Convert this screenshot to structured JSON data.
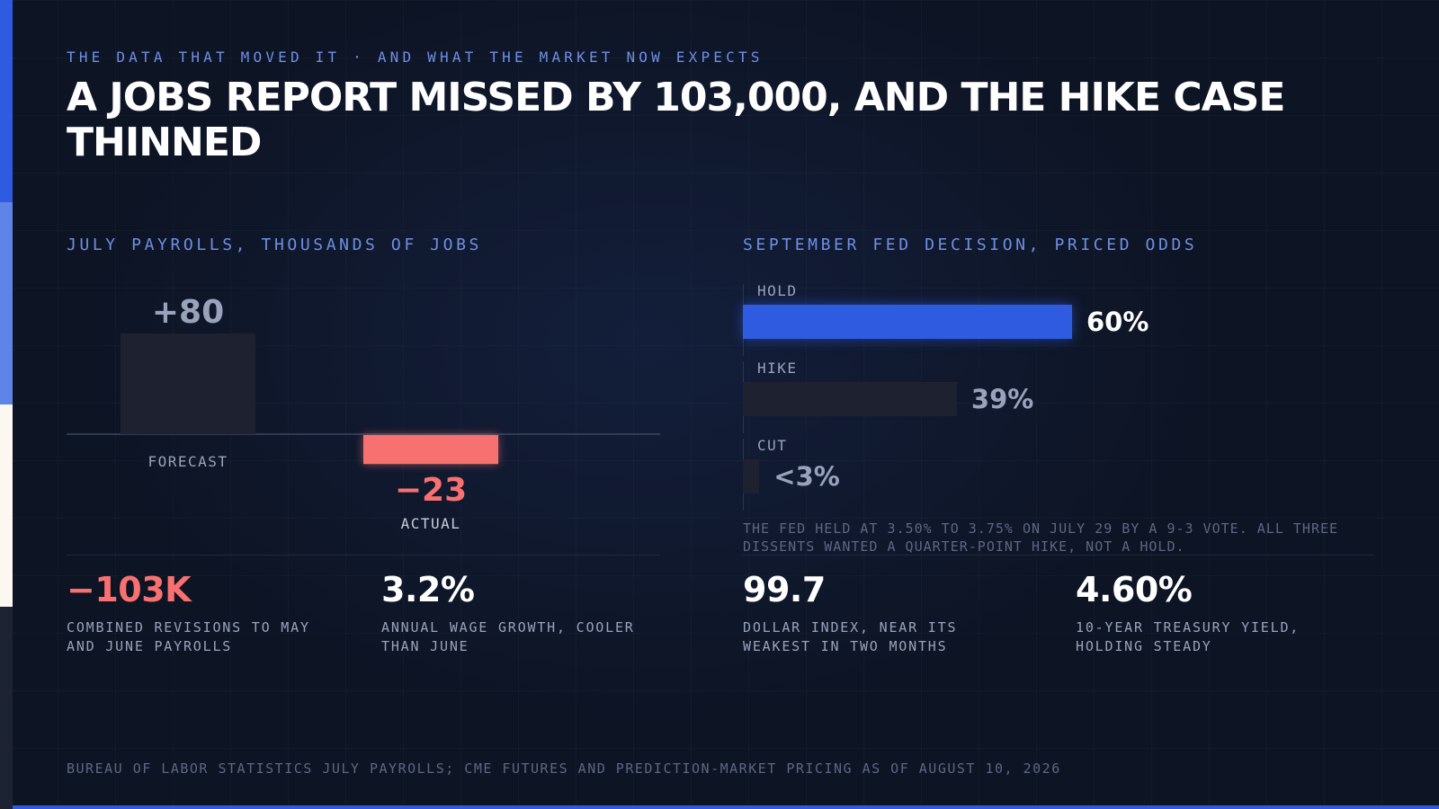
{
  "kicker": "THE DATA THAT MOVED IT · AND WHAT THE MARKET NOW EXPECTS",
  "headline": "A JOBS REPORT MISSED BY 103,000, AND THE HIKE CASE THINNED",
  "payroll_label": "JULY PAYROLLS, THOUSANDS OF JOBS",
  "odds_label": "SEPTEMBER FED DECISION, PRICED ODDS",
  "odds_note": "THE FED HELD AT 3.50% TO 3.75% ON JULY 29 BY A 9-3 VOTE. ALL THREE DISSENTS WANTED A QUARTER-POINT HIKE, NOT A HOLD.",
  "stats": [
    {
      "value": "−103K",
      "desc": "COMBINED REVISIONS TO MAY AND JUNE PAYROLLS",
      "color": "#f87171"
    },
    {
      "value": "3.2%",
      "desc": "ANNUAL WAGE GROWTH, COOLER THAN JUNE",
      "color": "#ffffff"
    },
    {
      "value": "99.7",
      "desc": "DOLLAR INDEX, NEAR ITS WEAKEST IN TWO MONTHS",
      "color": "#ffffff"
    },
    {
      "value": "4.60%",
      "desc": "10-YEAR TREASURY YIELD, HOLDING STEADY",
      "color": "#ffffff"
    }
  ],
  "source": "BUREAU OF LABOR STATISTICS JULY PAYROLLS; CME FUTURES AND PREDICTION-MARKET PRICING AS OF AUGUST 10, 2026",
  "colors": {
    "accent": "#2e5bdf",
    "negative": "#f87171",
    "muted_bar": "#1e2230",
    "muted_text": "#98a3bb"
  },
  "chart_data": [
    {
      "type": "bar",
      "title": "JULY PAYROLLS, THOUSANDS OF JOBS",
      "categories": [
        "FORECAST",
        "ACTUAL"
      ],
      "values": [
        80,
        -23
      ],
      "value_labels": [
        "+80",
        "−23"
      ],
      "ylabel": "",
      "xlabel": "",
      "grid": false
    },
    {
      "type": "bar",
      "orientation": "horizontal",
      "title": "SEPTEMBER FED DECISION, PRICED ODDS",
      "categories": [
        "HOLD",
        "HIKE",
        "CUT"
      ],
      "values": [
        60,
        39,
        3
      ],
      "value_labels": [
        "60%",
        "39%",
        "<3%"
      ],
      "xlim": [
        0,
        100
      ],
      "grid": false
    }
  ]
}
